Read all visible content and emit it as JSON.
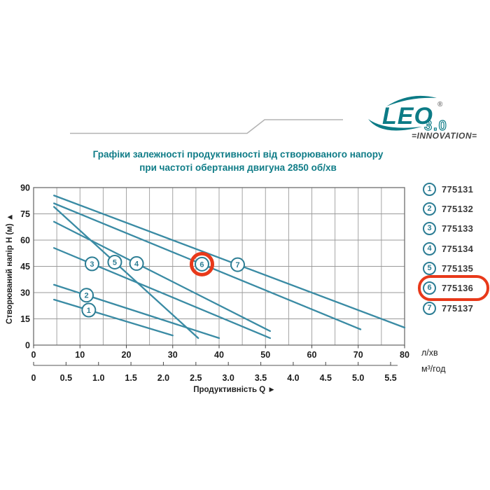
{
  "logo": {
    "brand": "LEO",
    "registered": "®",
    "version": "3.0",
    "tagline": "INNOVATION",
    "tagline_display": "=INNOVATION="
  },
  "title": {
    "line1": "Графіки залежності продуктивності від створюваного напору",
    "line2": "при частоті обертання двигуна 2850 об/хв"
  },
  "chart_data": {
    "type": "line",
    "xlabel": "Продуктивність Q",
    "xlabel_display": "Продуктивність  Q ►",
    "ylabel": "Створюваний напір H (м)",
    "ylabel_display": "Створюваний напір H (м) ►",
    "x_unit_primary": "л/хв",
    "x_unit_secondary": "м³/год",
    "xlim_lmin": [
      0,
      80
    ],
    "ylim": [
      0,
      90
    ],
    "x_ticks_lmin": [
      0,
      10,
      20,
      30,
      40,
      50,
      60,
      70,
      80
    ],
    "x_ticks_m3h": [
      "0",
      "0.5",
      "1.0",
      "1.5",
      "2.0",
      "2.5",
      "3.0",
      "3.5",
      "4.0",
      "4.5",
      "5.0",
      "5.5"
    ],
    "y_ticks": [
      0,
      15,
      30,
      45,
      60,
      75,
      90
    ],
    "grid": {
      "on": true,
      "x_step_lmin": 5,
      "y_step_m": 15
    },
    "legend_position": "right",
    "series": [
      {
        "label": "1",
        "model": "775131",
        "points": [
          [
            4.4,
            26.0
          ],
          [
            30.0,
            5.5
          ]
        ],
        "marker_q": 11.9,
        "highlighted": false
      },
      {
        "label": "2",
        "model": "775132",
        "points": [
          [
            4.4,
            34.5
          ],
          [
            40.0,
            4.0
          ]
        ],
        "marker_q": 11.4,
        "highlighted": false
      },
      {
        "label": "3",
        "model": "775133",
        "points": [
          [
            4.4,
            55.5
          ],
          [
            51.0,
            4.0
          ]
        ],
        "marker_q": 12.6,
        "highlighted": false
      },
      {
        "label": "4",
        "model": "775134",
        "points": [
          [
            4.4,
            70.5
          ],
          [
            51.0,
            8.0
          ]
        ],
        "marker_q": 22.2,
        "highlighted": false
      },
      {
        "label": "5",
        "model": "775135",
        "points": [
          [
            4.4,
            79.0
          ],
          [
            35.5,
            4.0
          ]
        ],
        "marker_q": 17.5,
        "highlighted": false
      },
      {
        "label": "6",
        "model": "775136",
        "points": [
          [
            4.4,
            81.0
          ],
          [
            70.5,
            9.0
          ]
        ],
        "marker_q": 36.3,
        "highlighted": true
      },
      {
        "label": "7",
        "model": "775137",
        "points": [
          [
            4.4,
            85.5
          ],
          [
            80.0,
            10.0
          ]
        ],
        "marker_q": 44.0,
        "highlighted": false
      }
    ],
    "highlight": {
      "series_label": "6",
      "model": "775136",
      "color": "#e8391a"
    }
  },
  "colors": {
    "accent_teal": "#0f7c87",
    "curve": "#3a8ba4",
    "marker": "#2c7d94",
    "highlight_red": "#e8391a",
    "grid": "#9a9a9a",
    "border": "#6e6e6e",
    "decorative_line": "#b3b3b3"
  }
}
